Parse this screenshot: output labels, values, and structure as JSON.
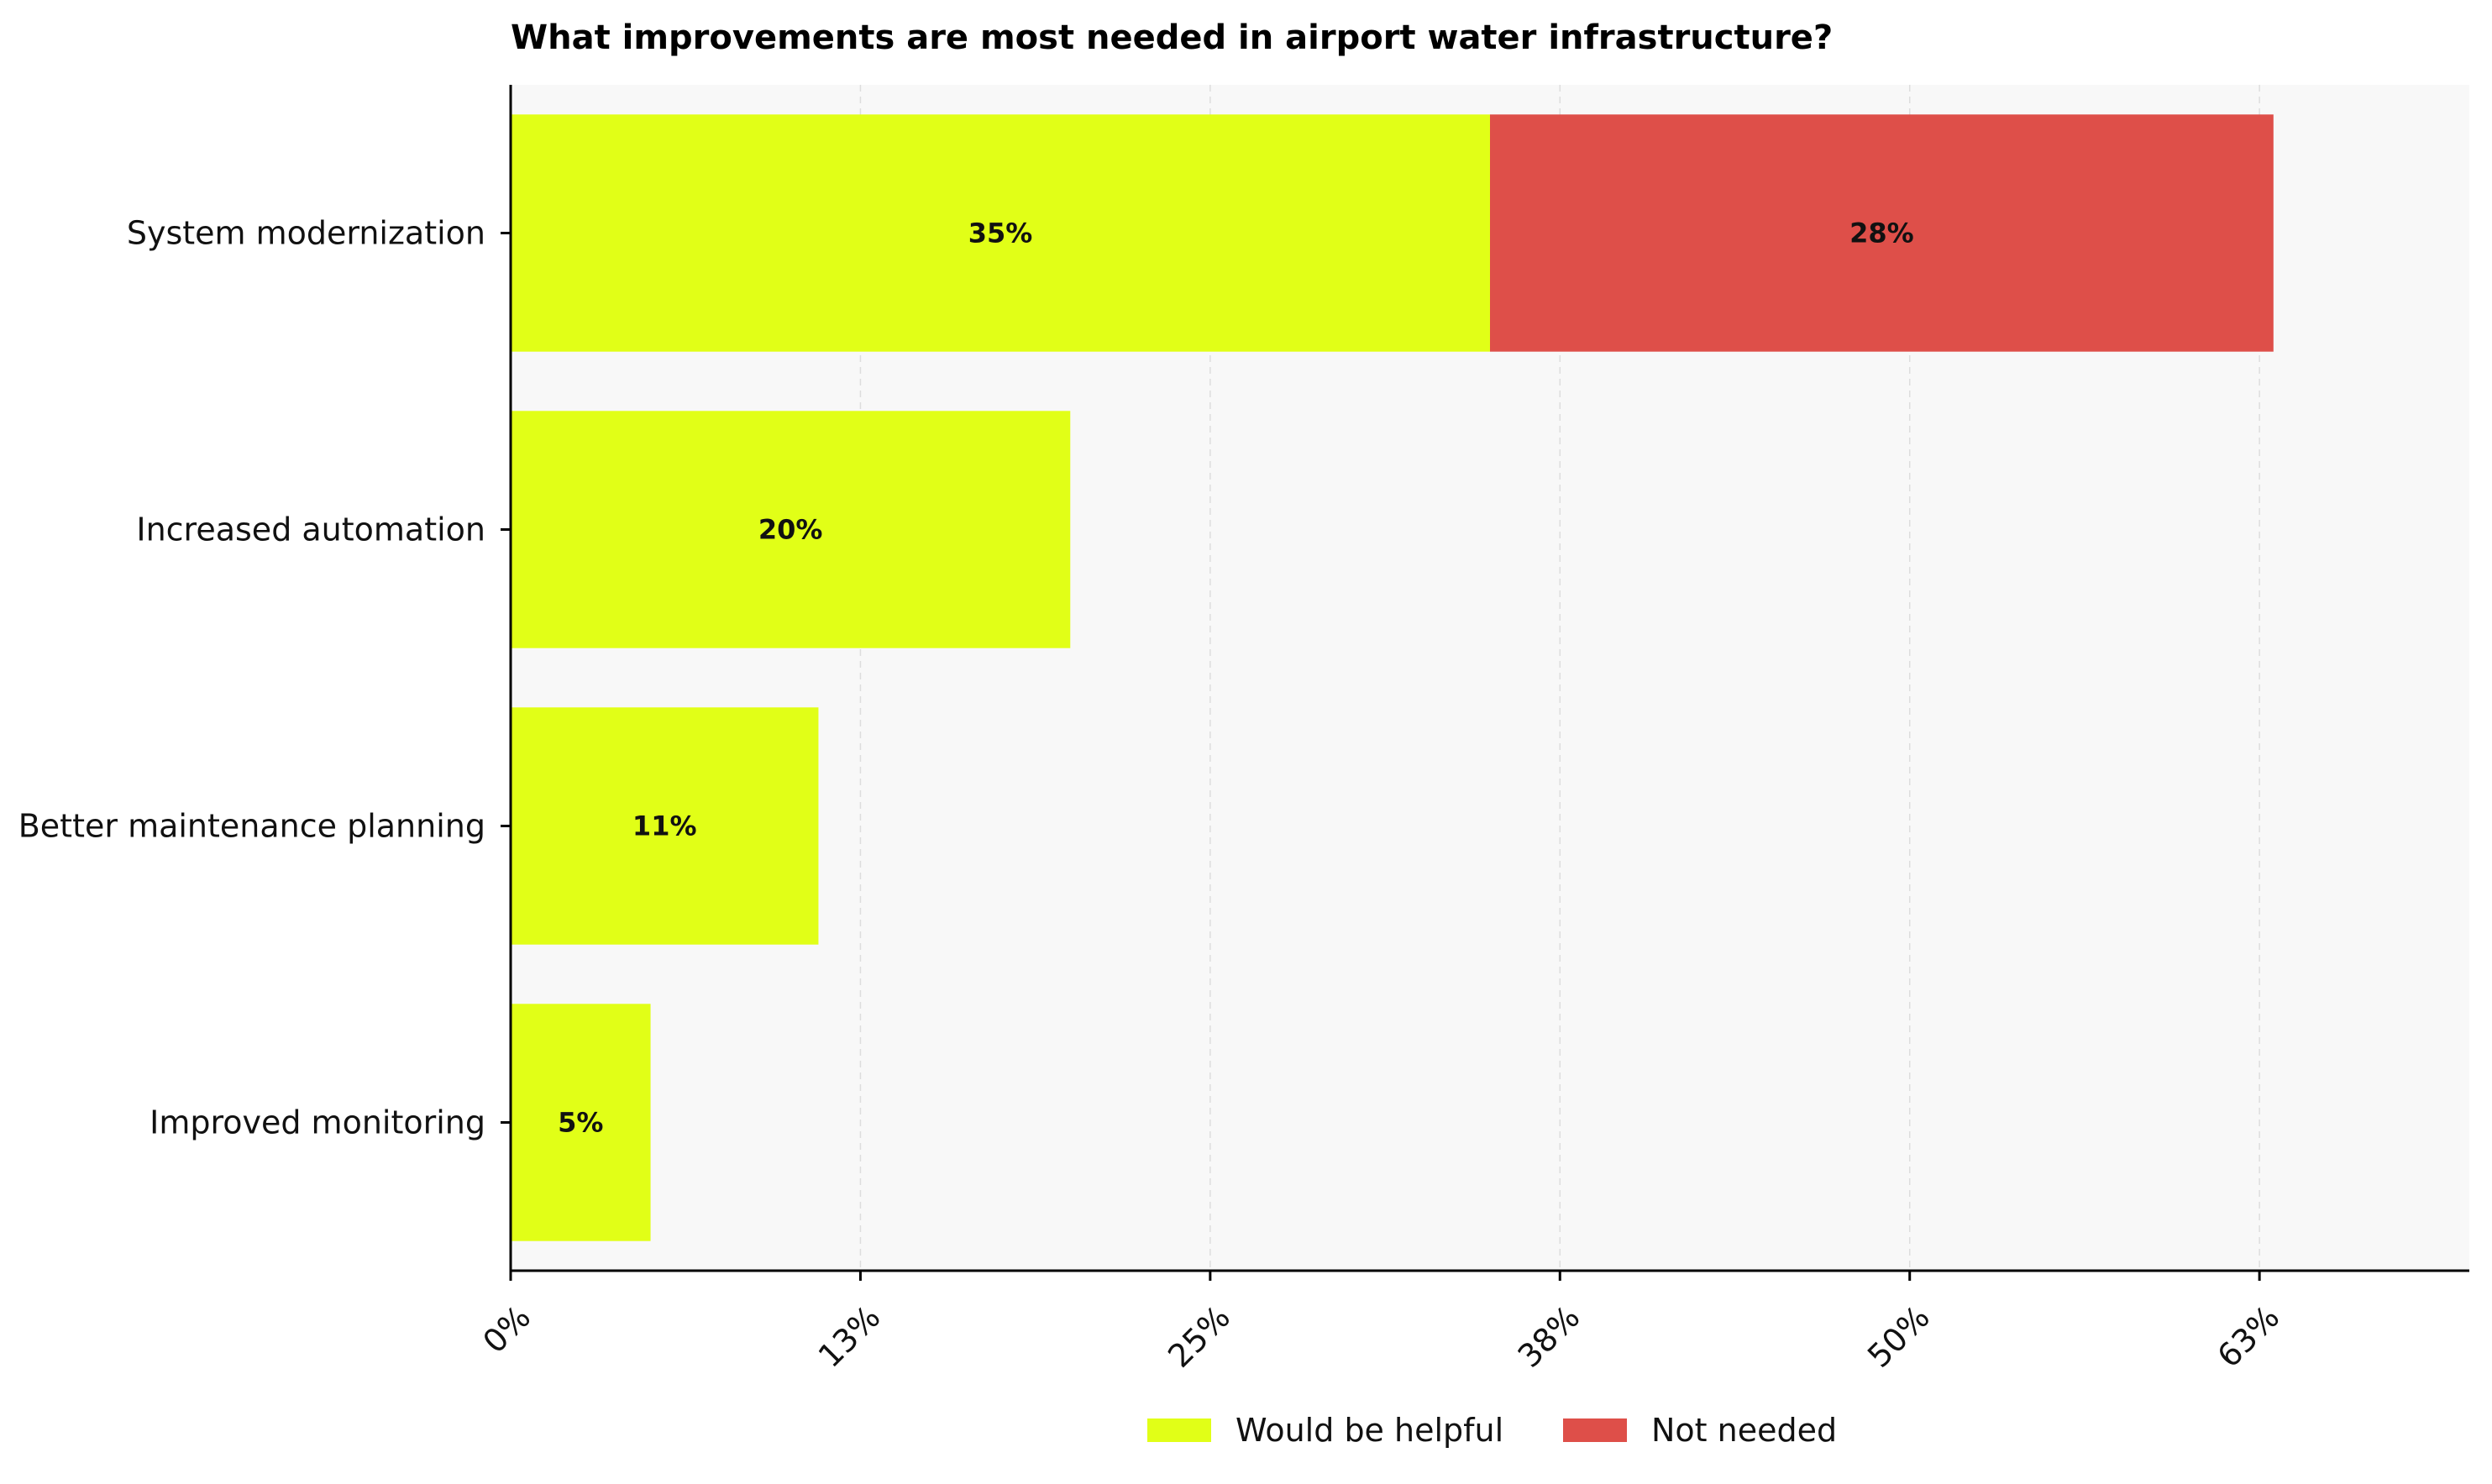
{
  "chart_data": {
    "type": "bar",
    "orientation": "horizontal",
    "stacked": true,
    "title": "What improvements are most needed in airport water infrastructure?",
    "categories": [
      "System modernization",
      "Increased automation",
      "Better maintenance planning",
      "Improved monitoring"
    ],
    "series": [
      {
        "name": "Would be helpful",
        "values": [
          35,
          20,
          11,
          5
        ],
        "labels": [
          "35%",
          "20%",
          "11%",
          "5%"
        ],
        "color": "#e1ff17"
      },
      {
        "name": "Not needed",
        "values": [
          28,
          0,
          0,
          0
        ],
        "labels": [
          "28%",
          "",
          "",
          ""
        ],
        "color": "#de4f49"
      }
    ],
    "x_ticks": [
      0,
      12.5,
      25,
      37.5,
      50,
      62.5
    ],
    "x_tick_labels": [
      "0%",
      "13%",
      "25%",
      "38%",
      "50%",
      "63%"
    ],
    "xlim": [
      0,
      70
    ],
    "grid": "vertical-dashed",
    "legend_position": "bottom-center",
    "colors": {
      "background": "#f8f8f8",
      "grid": "#dddddd",
      "axis": "#000000"
    }
  }
}
